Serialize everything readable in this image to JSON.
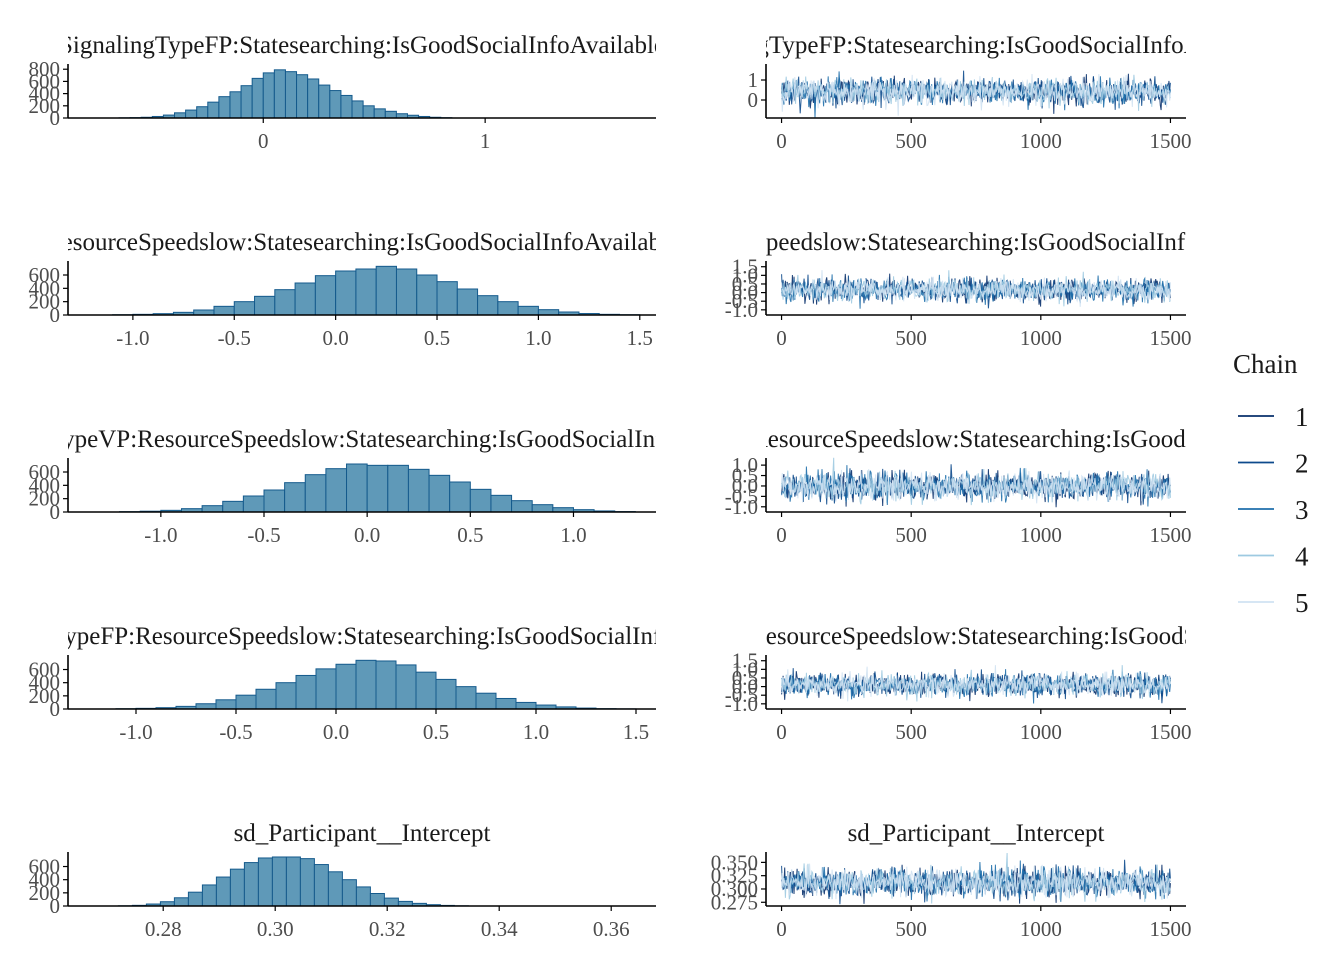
{
  "chart_data": [
    {
      "type": "bar",
      "kind": "histogram",
      "title": "SignalingTypeFP:Statesearching:IsGoodSocialInfoAvailable",
      "bins": {
        "start": -0.65,
        "width": 0.05,
        "counts": [
          3,
          6,
          12,
          25,
          48,
          85,
          130,
          185,
          260,
          350,
          430,
          530,
          650,
          740,
          790,
          760,
          710,
          640,
          540,
          450,
          370,
          280,
          200,
          150,
          110,
          70,
          45,
          25,
          12,
          5
        ]
      },
      "xlim": [
        -0.88,
        1.77
      ],
      "ylim": [
        0,
        820
      ],
      "x_ticks": [
        0,
        1
      ],
      "x_tick_labels": [
        "0",
        "1"
      ],
      "y_ticks": [
        0,
        200,
        400,
        600,
        800
      ],
      "y_tick_labels": [
        "0",
        "200",
        "400",
        "600",
        "800"
      ]
    },
    {
      "type": "bar",
      "kind": "histogram",
      "title": "ResourceSpeedslow:Statesearching:IsGoodSocialInfoAvailable",
      "bins": {
        "start": -1.1,
        "width": 0.1,
        "counts": [
          4,
          10,
          20,
          40,
          75,
          130,
          200,
          280,
          380,
          480,
          590,
          660,
          690,
          730,
          690,
          600,
          500,
          390,
          290,
          200,
          130,
          80,
          45,
          22,
          10,
          4
        ]
      },
      "xlim": [
        -1.32,
        1.58
      ],
      "ylim": [
        0,
        750
      ],
      "x_ticks": [
        -1.0,
        -0.5,
        0.0,
        0.5,
        1.0,
        1.5
      ],
      "x_tick_labels": [
        "-1.0",
        "-0.5",
        "0.0",
        "0.5",
        "1.0",
        "1.5"
      ],
      "y_ticks": [
        0,
        200,
        400,
        600
      ],
      "y_tick_labels": [
        "0",
        "200",
        "400",
        "600"
      ]
    },
    {
      "type": "bar",
      "kind": "histogram",
      "title": "SignalingTypeVP:ResourceSpeedslow:Statesearching:IsGoodSocialInfoAvailable",
      "bins": {
        "start": -1.2,
        "width": 0.1,
        "counts": [
          5,
          12,
          25,
          50,
          95,
          160,
          240,
          330,
          440,
          560,
          650,
          720,
          700,
          700,
          640,
          550,
          450,
          340,
          250,
          170,
          110,
          65,
          35,
          16,
          6
        ]
      },
      "xlim": [
        -1.45,
        1.4
      ],
      "ylim": [
        0,
        750
      ],
      "x_ticks": [
        -1.0,
        -0.5,
        0.0,
        0.5,
        1.0
      ],
      "x_tick_labels": [
        "-1.0",
        "-0.5",
        "0.0",
        "0.5",
        "1.0"
      ],
      "y_ticks": [
        0,
        200,
        400,
        600
      ],
      "y_tick_labels": [
        "0",
        "200",
        "400",
        "600"
      ]
    },
    {
      "type": "bar",
      "kind": "histogram",
      "title": "SignalingTypeFP:ResourceSpeedslow:Statesearching:IsGoodSocialInfoAvailable",
      "bins": {
        "start": -1.1,
        "width": 0.1,
        "counts": [
          4,
          10,
          20,
          40,
          80,
          140,
          210,
          300,
          400,
          510,
          610,
          680,
          740,
          730,
          670,
          560,
          450,
          340,
          240,
          160,
          100,
          60,
          32,
          14,
          5,
          2
        ]
      },
      "xlim": [
        -1.34,
        1.6
      ],
      "ylim": [
        0,
        760
      ],
      "x_ticks": [
        -1.0,
        -0.5,
        0.0,
        0.5,
        1.0,
        1.5
      ],
      "x_tick_labels": [
        "-1.0",
        "-0.5",
        "0.0",
        "0.5",
        "1.0",
        "1.5"
      ],
      "y_ticks": [
        0,
        200,
        400,
        600
      ],
      "y_tick_labels": [
        "0",
        "200",
        "400",
        "600"
      ]
    },
    {
      "type": "bar",
      "kind": "histogram",
      "title": "sd_Participant__Intercept",
      "bins": {
        "start": 0.272,
        "width": 0.0025,
        "counts": [
          3,
          10,
          30,
          65,
          125,
          210,
          320,
          440,
          560,
          660,
          730,
          745,
          745,
          720,
          630,
          520,
          400,
          290,
          190,
          120,
          70,
          40,
          20,
          9,
          3
        ]
      },
      "xlim": [
        0.263,
        0.368
      ],
      "ylim": [
        0,
        760
      ],
      "x_ticks": [
        0.28,
        0.3,
        0.32,
        0.34,
        0.36
      ],
      "x_tick_labels": [
        "0.28",
        "0.30",
        "0.32",
        "0.34",
        "0.36"
      ],
      "y_ticks": [
        0,
        200,
        400,
        600
      ],
      "y_tick_labels": [
        "0",
        "200",
        "400",
        "600"
      ]
    },
    {
      "type": "line",
      "kind": "trace",
      "title": "SignalingTypeFP:Statesearching:IsGoodSocialInfoAvailable",
      "iterations": 1500,
      "center": 0.42,
      "sd": 0.32,
      "xlim": [
        -60,
        1560
      ],
      "ylim": [
        -0.9,
        1.6
      ],
      "x_ticks": [
        0,
        500,
        1000,
        1500
      ],
      "x_tick_labels": [
        "0",
        "500",
        "1000",
        "1500"
      ],
      "y_ticks": [
        0,
        1
      ],
      "y_tick_labels": [
        "0",
        "1"
      ]
    },
    {
      "type": "line",
      "kind": "trace",
      "title": "ResourceSpeedslow:Statesearching:IsGoodSocialInfoAvailable",
      "iterations": 1500,
      "center": 0.15,
      "sd": 0.32,
      "xlim": [
        -60,
        1560
      ],
      "ylim": [
        -1.3,
        1.6
      ],
      "x_ticks": [
        0,
        500,
        1000,
        1500
      ],
      "x_tick_labels": [
        "0",
        "500",
        "1000",
        "1500"
      ],
      "y_ticks": [
        -1.0,
        -0.5,
        0.0,
        0.5,
        1.0,
        1.5
      ],
      "y_tick_labels": [
        "-1.0",
        "-0.5",
        "0.0",
        "0.5",
        "1.0",
        "1.5"
      ]
    },
    {
      "type": "line",
      "kind": "trace",
      "title": "SignalingTypeVP:ResourceSpeedslow:Statesearching:IsGoodSocialInfoAvailable",
      "iterations": 1500,
      "center": -0.02,
      "sd": 0.32,
      "xlim": [
        -60,
        1560
      ],
      "ylim": [
        -1.25,
        1.15
      ],
      "x_ticks": [
        0,
        500,
        1000,
        1500
      ],
      "x_tick_labels": [
        "0",
        "500",
        "1000",
        "1500"
      ],
      "y_ticks": [
        -1.0,
        -0.5,
        0.0,
        0.5,
        1.0
      ],
      "y_tick_labels": [
        "-1.0",
        "-0.5",
        "0.0",
        "0.5",
        "1.0"
      ]
    },
    {
      "type": "line",
      "kind": "trace",
      "title": "SignalingTypeFP:ResourceSpeedslow:Statesearching:IsGoodSocialInfoAvailable",
      "iterations": 1500,
      "center": 0.1,
      "sd": 0.32,
      "xlim": [
        -60,
        1560
      ],
      "ylim": [
        -1.3,
        1.6
      ],
      "x_ticks": [
        0,
        500,
        1000,
        1500
      ],
      "x_tick_labels": [
        "0",
        "500",
        "1000",
        "1500"
      ],
      "y_ticks": [
        -1.0,
        -0.5,
        0.0,
        0.5,
        1.0,
        1.5
      ],
      "y_tick_labels": [
        "-1.0",
        "-0.5",
        "0.0",
        "0.5",
        "1.0",
        "1.5"
      ]
    },
    {
      "type": "line",
      "kind": "trace",
      "title": "sd_Participant__Intercept",
      "iterations": 1500,
      "center": 0.312,
      "sd": 0.013,
      "xlim": [
        -60,
        1560
      ],
      "ylim": [
        0.268,
        0.362
      ],
      "x_ticks": [
        0,
        500,
        1000,
        1500
      ],
      "x_tick_labels": [
        "0",
        "500",
        "1000",
        "1500"
      ],
      "y_ticks": [
        0.275,
        0.3,
        0.325,
        0.35
      ],
      "y_tick_labels": [
        "0.275",
        "0.300",
        "0.325",
        "0.350"
      ]
    }
  ],
  "legend": {
    "title": "Chain",
    "placement": "right",
    "items": [
      {
        "label": "1",
        "color": "#08306b"
      },
      {
        "label": "2",
        "color": "#0d4a8c"
      },
      {
        "label": "3",
        "color": "#1f6fab"
      },
      {
        "label": "4",
        "color": "#9ecae1"
      },
      {
        "label": "5",
        "color": "#d0e2f2"
      }
    ]
  },
  "colors": {
    "hist_fill": "#5f99b8",
    "hist_edge": "#145a8c",
    "axis": "#000000",
    "tick_text": "#4d4d4d"
  }
}
